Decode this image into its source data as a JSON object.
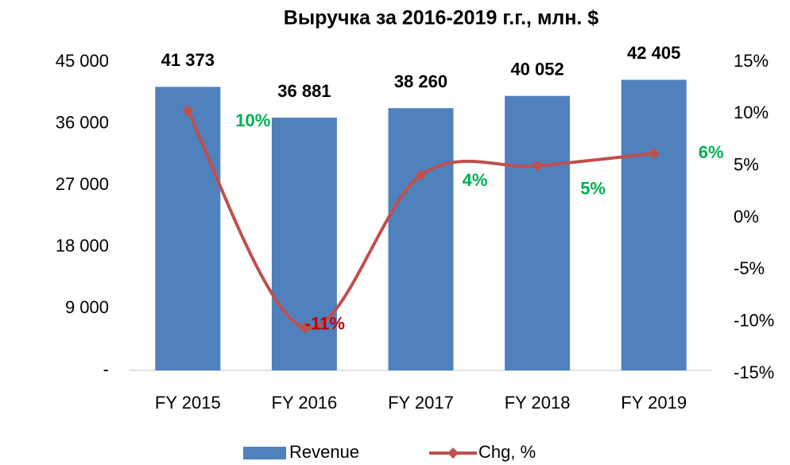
{
  "chart_data": {
    "type": "bar-line",
    "title": "Выручка за 2016-2019 г.г., млн. $",
    "categories": [
      "FY 2015",
      "FY 2016",
      "FY 2017",
      "FY 2018",
      "FY 2019"
    ],
    "series": [
      {
        "name": "Revenue",
        "type": "bar",
        "color": "#4f81bd",
        "values": [
          41373,
          36881,
          38260,
          40052,
          42405
        ],
        "value_labels": [
          "41 373",
          "36 881",
          "38 260",
          "40 052",
          "42 405"
        ]
      },
      {
        "name": "Chg, %",
        "type": "line",
        "axis": "y2",
        "color": "#c0504d",
        "smooth": true,
        "values": [
          10.3,
          -10.6,
          4.1,
          5.0,
          6.2
        ],
        "value_labels": [
          "10%",
          "-11%",
          "4%",
          "5%",
          "6%"
        ],
        "label_colors": [
          "#00b050",
          "#c00000",
          "#00b050",
          "#00b050",
          "#00b050"
        ]
      }
    ],
    "ylim": [
      0,
      45000
    ],
    "yticks": [
      {
        "value": 0,
        "label": "-"
      },
      {
        "value": 9000,
        "label": "9 000"
      },
      {
        "value": 18000,
        "label": "18 000"
      },
      {
        "value": 27000,
        "label": "27 000"
      },
      {
        "value": 36000,
        "label": "36 000"
      },
      {
        "value": 45000,
        "label": "45 000"
      }
    ],
    "y2lim": [
      -15,
      15
    ],
    "y2ticks": [
      {
        "value": -15,
        "label": "-15%"
      },
      {
        "value": -10,
        "label": "-10%"
      },
      {
        "value": -5,
        "label": "-5%"
      },
      {
        "value": 0,
        "label": "0%"
      },
      {
        "value": 5,
        "label": "5%"
      },
      {
        "value": 10,
        "label": "10%"
      },
      {
        "value": 15,
        "label": "15%"
      }
    ],
    "grid": false,
    "legend": "bottom"
  }
}
